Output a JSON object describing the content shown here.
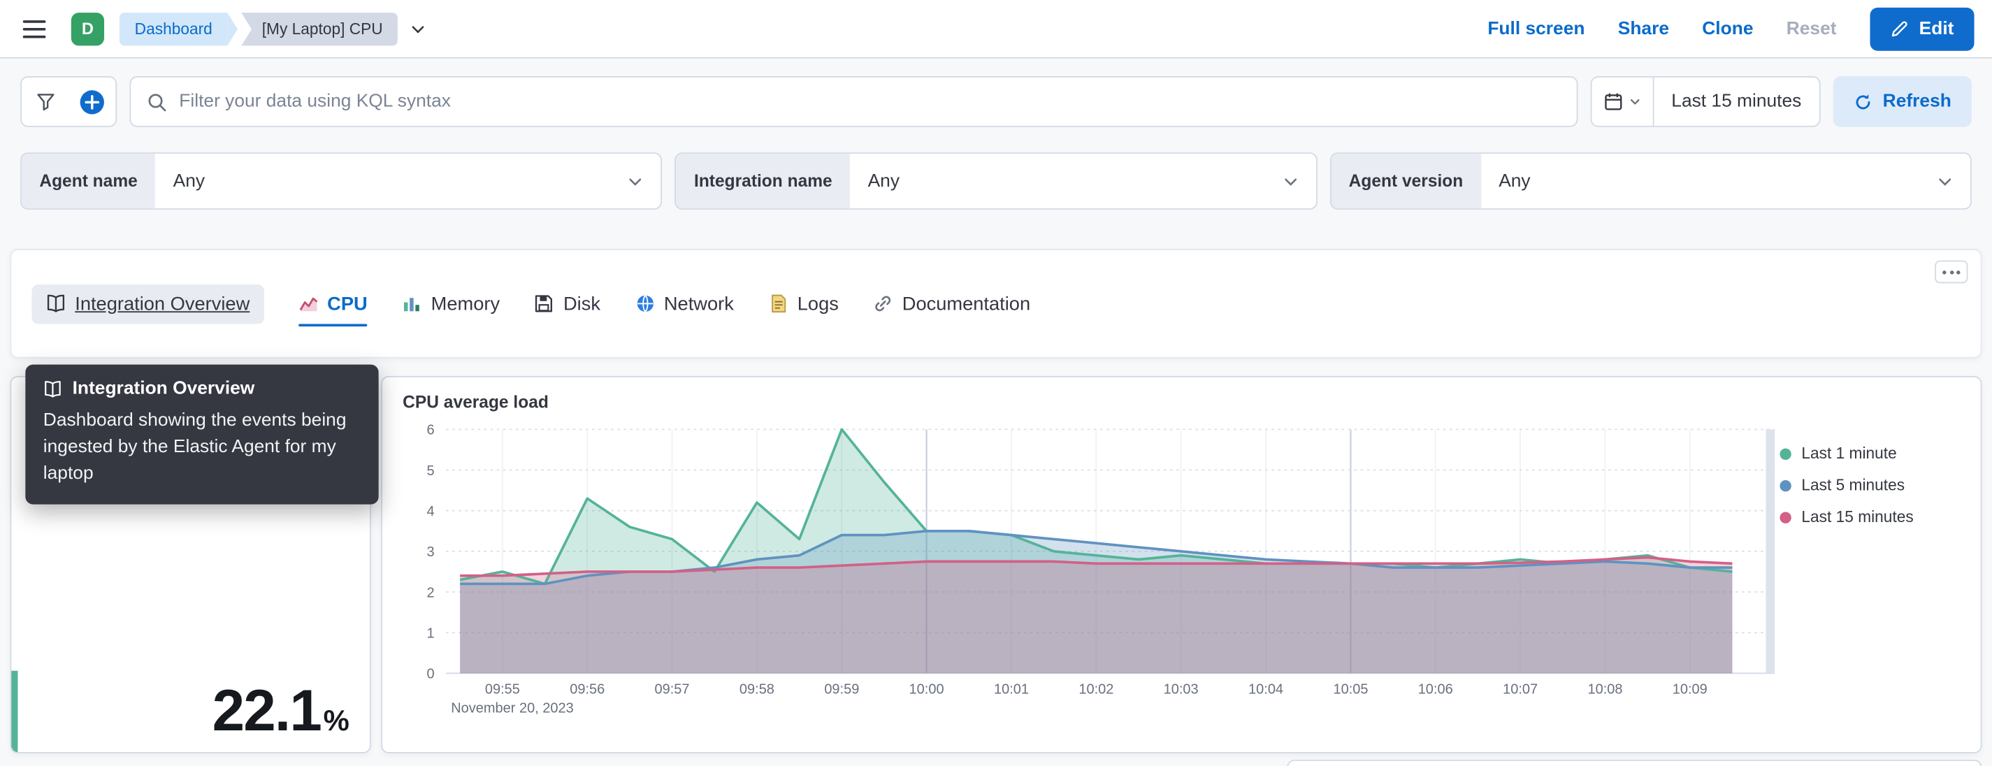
{
  "header": {
    "space_badge": "D",
    "breadcrumbs": [
      "Dashboard",
      "[My Laptop] CPU"
    ],
    "actions": {
      "full_screen": "Full screen",
      "share": "Share",
      "clone": "Clone",
      "reset": "Reset",
      "edit": "Edit"
    }
  },
  "query_bar": {
    "search_placeholder": "Filter your data using KQL syntax",
    "time_range": "Last 15 minutes",
    "refresh": "Refresh"
  },
  "filter_controls": [
    {
      "label": "Agent name",
      "value": "Any"
    },
    {
      "label": "Integration name",
      "value": "Any"
    },
    {
      "label": "Agent version",
      "value": "Any"
    }
  ],
  "tabs": [
    {
      "label": "Integration Overview",
      "icon": "book-icon",
      "state": "hovered"
    },
    {
      "label": "CPU",
      "icon": "line-chart-icon",
      "state": "selected"
    },
    {
      "label": "Memory",
      "icon": "bar-chart-icon",
      "state": "default"
    },
    {
      "label": "Disk",
      "icon": "floppy-disk-icon",
      "state": "default"
    },
    {
      "label": "Network",
      "icon": "globe-icon",
      "state": "default"
    },
    {
      "label": "Logs",
      "icon": "document-icon",
      "state": "default"
    },
    {
      "label": "Documentation",
      "icon": "link-icon",
      "state": "default"
    }
  ],
  "tooltip": {
    "title": "Integration Overview",
    "body": "Dashboard showing the events being ingested by the Elastic Agent for my laptop"
  },
  "metric_panel": {
    "value": "22.1",
    "unit": "%",
    "accent_color": "#54B399"
  },
  "chart_data": {
    "type": "area",
    "title": "CPU average load",
    "x_axis_date_label": "November 20, 2023",
    "x_domain": [
      "09:54:20",
      "10:10:00"
    ],
    "x_ticks": [
      "09:55",
      "09:56",
      "09:57",
      "09:58",
      "09:59",
      "10:00",
      "10:01",
      "10:02",
      "10:03",
      "10:04",
      "10:05",
      "10:06",
      "10:07",
      "10:08",
      "10:09"
    ],
    "x_major_gridlines": [
      "10:00",
      "10:05"
    ],
    "ylim": [
      0,
      6
    ],
    "y_ticks": [
      0,
      1,
      2,
      3,
      4,
      5,
      6
    ],
    "grid": "horizontal-dotted",
    "legend_position": "right",
    "points_start": "09:54:30",
    "points_interval_seconds": 30,
    "series": [
      {
        "name": "Last 1 minute",
        "color": "#54B399",
        "values": [
          2.3,
          2.5,
          2.2,
          4.3,
          3.6,
          3.3,
          2.5,
          4.2,
          3.3,
          6.0,
          4.7,
          3.5,
          3.5,
          3.4,
          3.0,
          2.9,
          2.8,
          2.9,
          2.8,
          2.7,
          2.7,
          2.7,
          2.7,
          2.6,
          2.7,
          2.8,
          2.7,
          2.8,
          2.9,
          2.6,
          2.5
        ]
      },
      {
        "name": "Last 5 minutes",
        "color": "#6092C0",
        "values": [
          2.2,
          2.2,
          2.2,
          2.4,
          2.5,
          2.5,
          2.6,
          2.8,
          2.9,
          3.4,
          3.4,
          3.5,
          3.5,
          3.4,
          3.3,
          3.2,
          3.1,
          3.0,
          2.9,
          2.8,
          2.75,
          2.7,
          2.6,
          2.6,
          2.6,
          2.65,
          2.7,
          2.75,
          2.7,
          2.6,
          2.6
        ]
      },
      {
        "name": "Last 15 minutes",
        "color": "#D36086",
        "values": [
          2.4,
          2.4,
          2.45,
          2.5,
          2.5,
          2.5,
          2.55,
          2.6,
          2.6,
          2.65,
          2.7,
          2.75,
          2.75,
          2.75,
          2.75,
          2.7,
          2.7,
          2.7,
          2.7,
          2.7,
          2.7,
          2.7,
          2.7,
          2.7,
          2.7,
          2.72,
          2.75,
          2.8,
          2.85,
          2.75,
          2.7
        ]
      }
    ]
  },
  "colors": {
    "accent_blue": "#0a6bcb",
    "border": "#d3dae6",
    "space_badge_bg": "#36a165",
    "tooltip_bg": "#353741",
    "page_bg": "#f7f8fa"
  }
}
